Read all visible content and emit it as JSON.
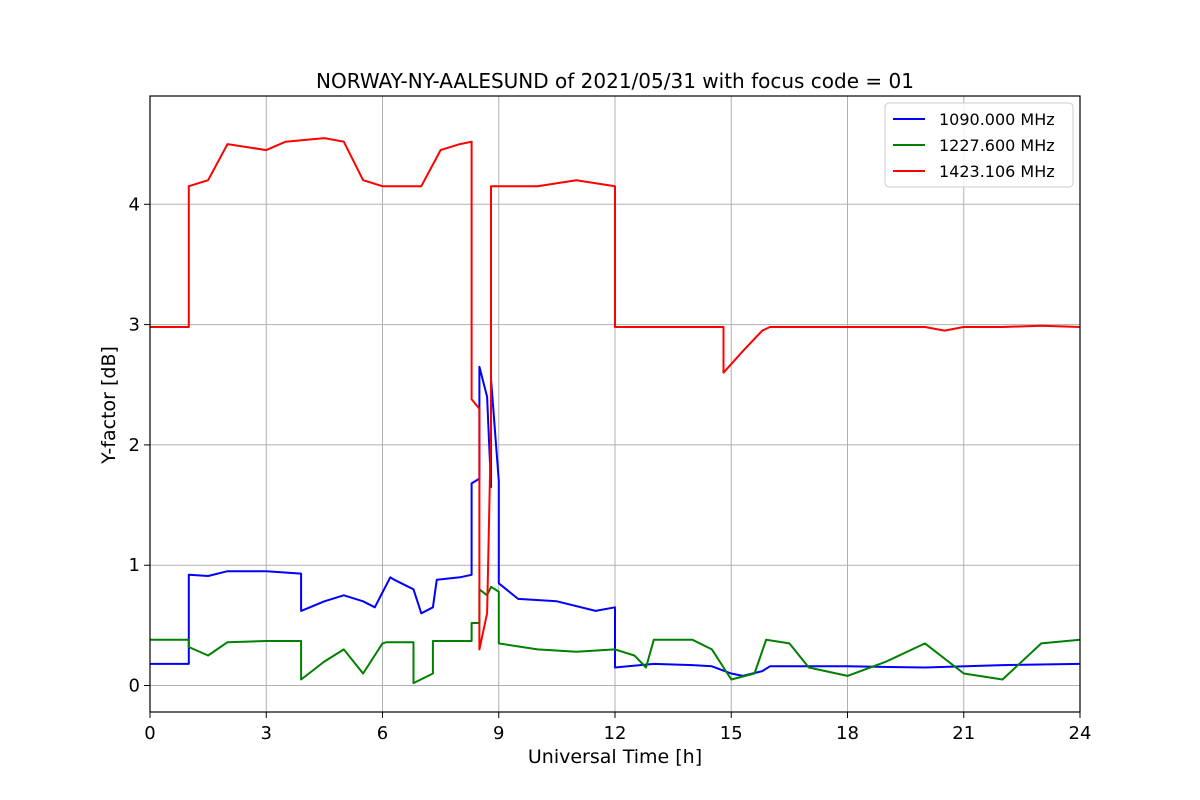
{
  "chart_data": {
    "type": "line",
    "title": "NORWAY-NY-AALESUND of 2021/05/31 with focus code = 01",
    "xlabel": "Universal Time [h]",
    "ylabel": "Y-factor [dB]",
    "xlim": [
      0,
      24
    ],
    "ylim": [
      -0.22,
      4.9
    ],
    "xticks": [
      0,
      3,
      6,
      9,
      12,
      15,
      18,
      21,
      24
    ],
    "yticks": [
      0,
      1,
      2,
      3,
      4
    ],
    "grid": true,
    "legend_position": "top-right",
    "series": [
      {
        "name": "1090.000 MHz",
        "color": "#0000ff",
        "x": [
          0,
          1.0,
          1.0,
          1.5,
          2.0,
          3.0,
          3.9,
          3.9,
          4.5,
          5.0,
          5.5,
          5.8,
          6.2,
          6.3,
          6.8,
          7.0,
          7.3,
          7.4,
          8.0,
          8.3,
          8.3,
          8.5,
          8.5,
          8.7,
          8.8,
          8.8,
          9.0,
          9.0,
          9.5,
          10.5,
          11.5,
          12.0,
          12.0,
          13.0,
          14.0,
          14.5,
          15.0,
          15.3,
          15.8,
          16.0,
          18.0,
          20.0,
          22.0,
          24.0
        ],
        "y": [
          0.18,
          0.18,
          0.92,
          0.91,
          0.95,
          0.95,
          0.93,
          0.62,
          0.7,
          0.75,
          0.7,
          0.65,
          0.9,
          0.88,
          0.8,
          0.6,
          0.65,
          0.88,
          0.9,
          0.92,
          1.68,
          1.72,
          2.65,
          2.4,
          1.65,
          2.55,
          1.7,
          0.85,
          0.72,
          0.7,
          0.62,
          0.65,
          0.15,
          0.18,
          0.17,
          0.16,
          0.1,
          0.08,
          0.12,
          0.16,
          0.16,
          0.15,
          0.17,
          0.18
        ]
      },
      {
        "name": "1227.600 MHz",
        "color": "#008000",
        "x": [
          0,
          1.0,
          1.0,
          1.5,
          2.0,
          3.0,
          3.9,
          3.9,
          4.5,
          5.0,
          5.5,
          6.0,
          6.1,
          6.8,
          6.8,
          7.3,
          7.3,
          8.0,
          8.3,
          8.3,
          8.5,
          8.5,
          8.7,
          8.8,
          9.0,
          9.0,
          10.0,
          11.0,
          12.0,
          12.5,
          12.8,
          13.0,
          14.0,
          14.5,
          15.0,
          15.6,
          15.9,
          16.5,
          17.0,
          18.0,
          19.0,
          20.0,
          21.0,
          22.0,
          23.0,
          24.0
        ],
        "y": [
          0.38,
          0.38,
          0.32,
          0.25,
          0.36,
          0.37,
          0.37,
          0.05,
          0.2,
          0.3,
          0.1,
          0.35,
          0.36,
          0.36,
          0.02,
          0.1,
          0.37,
          0.37,
          0.37,
          0.52,
          0.52,
          0.8,
          0.75,
          0.82,
          0.78,
          0.35,
          0.3,
          0.28,
          0.3,
          0.25,
          0.15,
          0.38,
          0.38,
          0.3,
          0.05,
          0.1,
          0.38,
          0.35,
          0.15,
          0.08,
          0.2,
          0.35,
          0.1,
          0.05,
          0.35,
          0.38
        ]
      },
      {
        "name": "1423.106 MHz",
        "color": "#ff0000",
        "x": [
          0,
          1.0,
          1.0,
          1.5,
          2.0,
          3.0,
          3.5,
          4.5,
          5.0,
          5.5,
          6.0,
          7.0,
          7.5,
          8.0,
          8.3,
          8.3,
          8.5,
          8.5,
          8.7,
          8.8,
          8.8,
          9.0,
          9.0,
          10.0,
          11.0,
          12.0,
          12.0,
          14.0,
          14.5,
          14.8,
          14.8,
          15.3,
          15.8,
          16.0,
          18.0,
          20.0,
          20.5,
          21.0,
          22.0,
          23.0,
          24.0
        ],
        "y": [
          2.98,
          2.98,
          4.15,
          4.2,
          4.5,
          4.45,
          4.52,
          4.55,
          4.52,
          4.2,
          4.15,
          4.15,
          4.45,
          4.5,
          4.52,
          2.38,
          2.3,
          0.3,
          0.6,
          2.15,
          4.15,
          4.15,
          4.15,
          4.15,
          4.2,
          4.15,
          2.98,
          2.98,
          2.98,
          2.98,
          2.6,
          2.78,
          2.95,
          2.98,
          2.98,
          2.98,
          2.95,
          2.98,
          2.98,
          2.99,
          2.98
        ]
      }
    ]
  }
}
